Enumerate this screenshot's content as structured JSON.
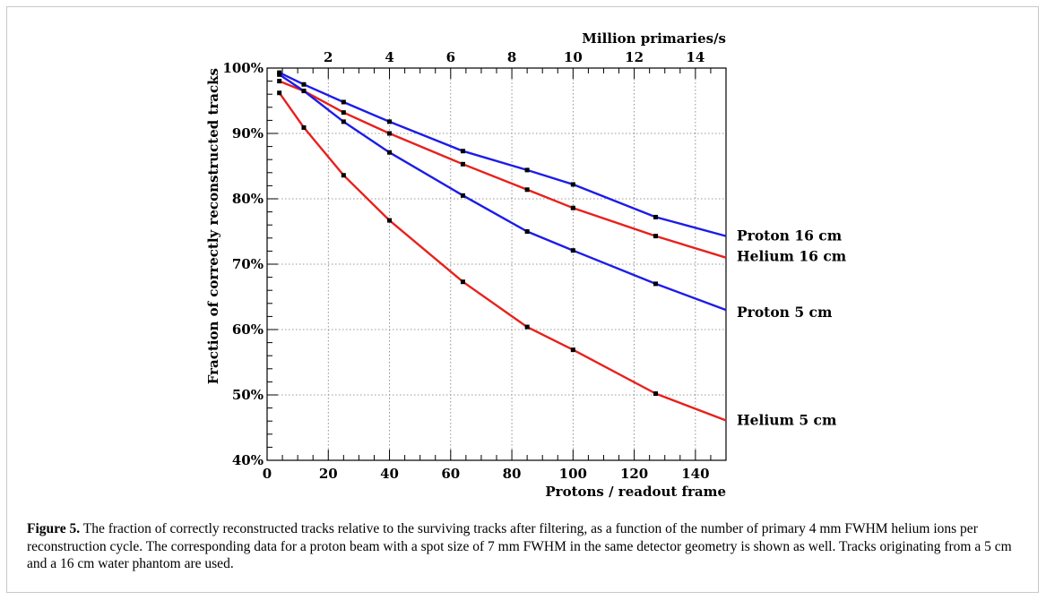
{
  "chart_data": {
    "type": "line",
    "ylabel": "Fraction of correctly reconstructed tracks",
    "xlabel": "Protons / readout frame",
    "x2label": "Million primaries/s",
    "xlim": [
      0,
      150
    ],
    "ylim": [
      40,
      100
    ],
    "x2lim": [
      0,
      15
    ],
    "yticks": [
      "40%",
      "50%",
      "60%",
      "70%",
      "80%",
      "90%",
      "100%"
    ],
    "xticks": [
      "0",
      "20",
      "40",
      "60",
      "80",
      "100",
      "120",
      "140"
    ],
    "x2ticks": [
      "2",
      "4",
      "6",
      "8",
      "10",
      "12",
      "14"
    ],
    "grid": true,
    "colors": {
      "helium": "#e8201c",
      "proton": "#1c1ce8"
    },
    "series": [
      {
        "name": "Proton 16 cm",
        "color": "#1c1ce8",
        "x": [
          4,
          12,
          25,
          40,
          64,
          85,
          100,
          127,
          150
        ],
        "y": [
          99.3,
          97.5,
          94.8,
          91.8,
          87.3,
          84.4,
          82.2,
          77.2,
          74.3
        ]
      },
      {
        "name": "Helium 16 cm",
        "color": "#e8201c",
        "x": [
          4,
          12,
          25,
          40,
          64,
          85,
          100,
          127,
          150
        ],
        "y": [
          98.0,
          96.5,
          93.2,
          90.0,
          85.3,
          81.4,
          78.6,
          74.3,
          71.0
        ]
      },
      {
        "name": "Proton 5 cm",
        "color": "#1c1ce8",
        "x": [
          4,
          12,
          25,
          40,
          64,
          85,
          100,
          127,
          150
        ],
        "y": [
          99.0,
          96.5,
          91.8,
          87.1,
          80.5,
          75.0,
          72.1,
          67.0,
          63.0
        ]
      },
      {
        "name": "Helium 5 cm",
        "color": "#e8201c",
        "x": [
          4,
          12,
          25,
          40,
          64,
          85,
          100,
          127,
          150
        ],
        "y": [
          96.2,
          90.9,
          83.6,
          76.7,
          67.3,
          60.4,
          56.9,
          50.2,
          46.1
        ]
      }
    ]
  },
  "caption": {
    "label": "Figure 5.",
    "text": " The fraction of correctly reconstructed tracks relative to the surviving tracks after filtering, as a function of the number of primary 4 mm FWHM helium ions per reconstruction cycle. The corresponding data for a proton beam with a spot size of 7 mm FWHM in the same detector geometry is shown as well. Tracks originating from a 5 cm and a 16 cm water phantom are used."
  }
}
